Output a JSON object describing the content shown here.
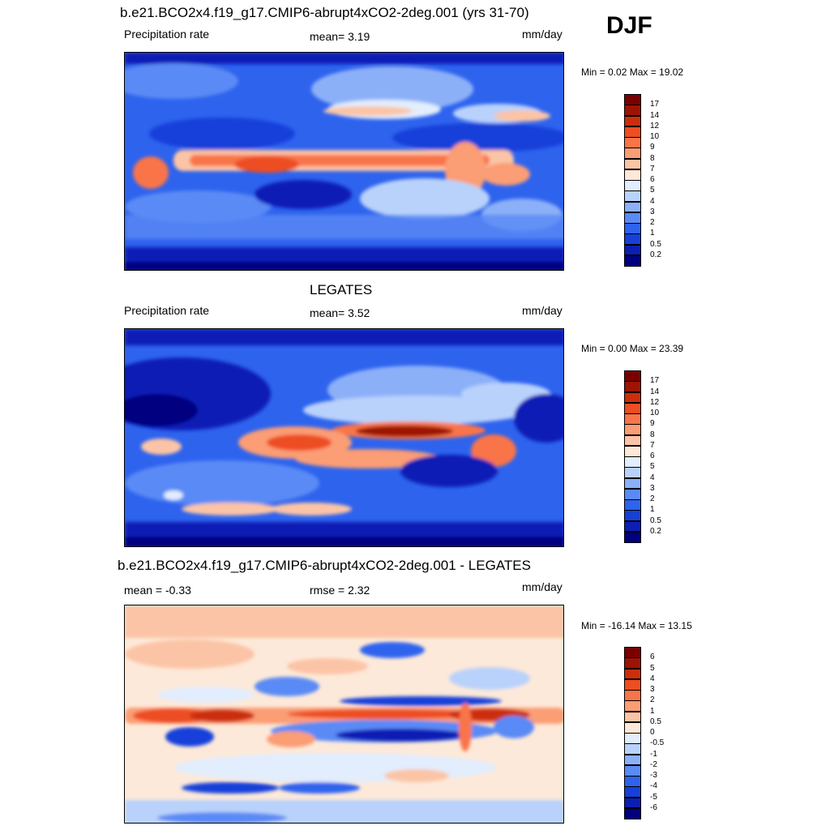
{
  "season": "DJF",
  "colors": {
    "precip": [
      "#000080",
      "#0b1fb5",
      "#1740d9",
      "#2e63ee",
      "#5a8af5",
      "#8cb0f8",
      "#b9d2fb",
      "#e2edfd",
      "#fde9d9",
      "#fcc4a6",
      "#fb9d74",
      "#f97549",
      "#ed4e22",
      "#cc2e0d",
      "#9e1303",
      "#7a0000"
    ],
    "diff": [
      "#000080",
      "#0b1fb5",
      "#1740d9",
      "#2e63ee",
      "#5a8af5",
      "#8cb0f8",
      "#b9d2fb",
      "#e2edfd",
      "#fde9d9",
      "#fcc4a6",
      "#fb9d74",
      "#f97549",
      "#ed4e22",
      "#cc2e0d",
      "#9e1303",
      "#7a0000"
    ]
  },
  "panels": [
    {
      "id": "model",
      "title": "b.e21.BCO2x4.f19_g17.CMIP6-abrupt4xCO2-2deg.001 (yrs 31-70)",
      "left_label": "Precipitation rate",
      "center_label": "mean=   3.19",
      "units": "mm/day",
      "minmax": "Min =   0.02 Max =  19.02",
      "levels": [
        "17",
        "14",
        "12",
        "10",
        "9",
        "8",
        "7",
        "6",
        "5",
        "4",
        "3",
        "2",
        "1",
        "0.5",
        "0.2"
      ],
      "palette": "precip"
    },
    {
      "id": "obs",
      "title": "LEGATES",
      "left_label": "Precipitation rate",
      "center_label": "mean=   3.52",
      "units": "mm/day",
      "minmax": "Min =   0.00 Max =  23.39",
      "levels": [
        "17",
        "14",
        "12",
        "10",
        "9",
        "8",
        "7",
        "6",
        "5",
        "4",
        "3",
        "2",
        "1",
        "0.5",
        "0.2"
      ],
      "palette": "precip"
    },
    {
      "id": "diff",
      "title": "b.e21.BCO2x4.f19_g17.CMIP6-abrupt4xCO2-2deg.001 - LEGATES",
      "left_label": "mean =  -0.33",
      "center_label": "rmse =   2.32",
      "units": "mm/day",
      "minmax": "Min = -16.14 Max =  13.15",
      "levels": [
        "6",
        "5",
        "4",
        "3",
        "2",
        "1",
        "0.5",
        "0",
        "-0.5",
        "-1",
        "-2",
        "-3",
        "-4",
        "-5",
        "-6"
      ],
      "palette": "diff"
    }
  ]
}
